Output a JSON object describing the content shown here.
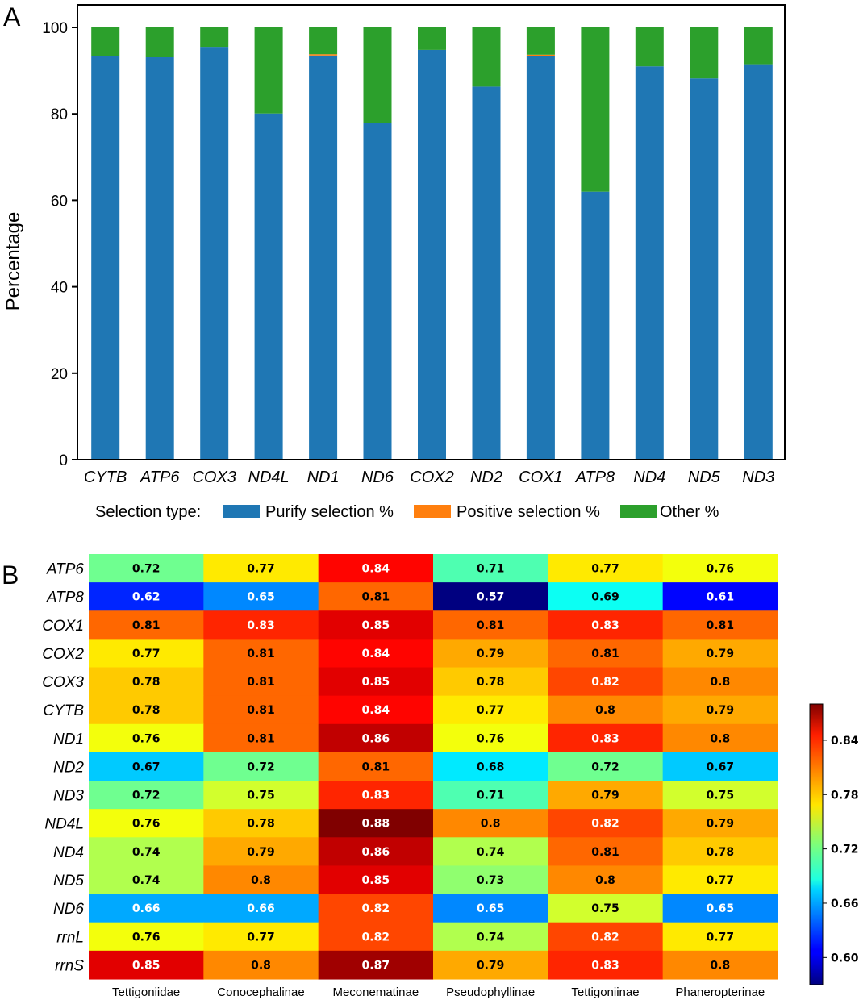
{
  "chart_data": [
    {
      "type": "bar",
      "stacked": true,
      "panel_label": "A",
      "ylabel": "Percentage",
      "ylim": [
        0,
        100
      ],
      "yticks": [
        0,
        20,
        40,
        60,
        80,
        100
      ],
      "categories": [
        "CYTB",
        "ATP6",
        "COX3",
        "ND4L",
        "ND1",
        "ND6",
        "COX2",
        "ND2",
        "COX1",
        "ATP8",
        "ND4",
        "ND5",
        "ND3"
      ],
      "series": [
        {
          "name": "Purify selection %",
          "color": "#1f77b4",
          "values": [
            93.3,
            93.1,
            95.5,
            80.1,
            93.5,
            77.8,
            94.8,
            86.3,
            93.4,
            62.0,
            91.0,
            88.2,
            91.5
          ]
        },
        {
          "name": "Positive selection %",
          "color": "#ff7f0e",
          "values": [
            0.0,
            0.0,
            0.0,
            0.0,
            0.3,
            0.0,
            0.0,
            0.0,
            0.3,
            0.0,
            0.0,
            0.0,
            0.0
          ]
        },
        {
          "name": "Other %",
          "color": "#2ca02c",
          "values": [
            6.7,
            6.9,
            4.5,
            19.9,
            6.2,
            22.2,
            5.2,
            13.7,
            6.3,
            38.0,
            9.0,
            11.8,
            8.5
          ]
        }
      ],
      "legend": {
        "title": "Selection type:",
        "position": "bottom"
      }
    },
    {
      "type": "heatmap",
      "panel_label": "B",
      "rows": [
        "ATP6",
        "ATP8",
        "COX1",
        "COX2",
        "COX3",
        "CYTB",
        "ND1",
        "ND2",
        "ND3",
        "ND4L",
        "ND4",
        "ND5",
        "ND6",
        "rrnL",
        "rrnS"
      ],
      "columns": [
        "Tettigoniidae",
        "Conocephalinae",
        "Meconematinae",
        "Pseudophyllinae",
        "Tettigoniinae",
        "Phaneropterinae"
      ],
      "values": [
        [
          0.72,
          0.77,
          0.84,
          0.71,
          0.77,
          0.76
        ],
        [
          0.62,
          0.65,
          0.81,
          0.57,
          0.69,
          0.61
        ],
        [
          0.81,
          0.83,
          0.85,
          0.81,
          0.83,
          0.81
        ],
        [
          0.77,
          0.81,
          0.84,
          0.79,
          0.81,
          0.79
        ],
        [
          0.78,
          0.81,
          0.85,
          0.78,
          0.82,
          0.8
        ],
        [
          0.78,
          0.81,
          0.84,
          0.77,
          0.8,
          0.79
        ],
        [
          0.76,
          0.81,
          0.86,
          0.76,
          0.83,
          0.8
        ],
        [
          0.67,
          0.72,
          0.81,
          0.68,
          0.72,
          0.67
        ],
        [
          0.72,
          0.75,
          0.83,
          0.71,
          0.79,
          0.75
        ],
        [
          0.76,
          0.78,
          0.88,
          0.8,
          0.82,
          0.79
        ],
        [
          0.74,
          0.79,
          0.86,
          0.74,
          0.81,
          0.78
        ],
        [
          0.74,
          0.8,
          0.85,
          0.73,
          0.8,
          0.77
        ],
        [
          0.66,
          0.66,
          0.82,
          0.65,
          0.75,
          0.65
        ],
        [
          0.76,
          0.77,
          0.82,
          0.74,
          0.82,
          0.77
        ],
        [
          0.85,
          0.8,
          0.87,
          0.79,
          0.83,
          0.8
        ]
      ],
      "colormap": "jet",
      "vmin": 0.57,
      "vmax": 0.88,
      "colorbar_ticks": [
        "0.84",
        "0.78",
        "0.72",
        "0.66",
        "0.60"
      ]
    }
  ]
}
